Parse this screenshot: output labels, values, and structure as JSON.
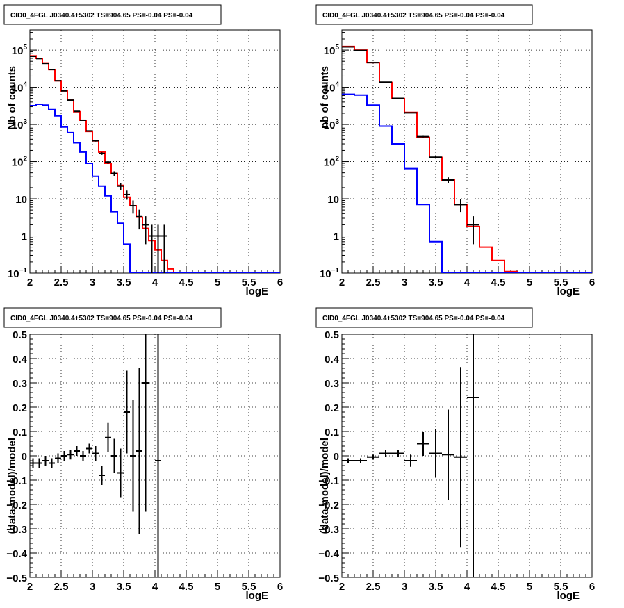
{
  "colors": {
    "data": "#000000",
    "model_total": "#ff0000",
    "model_source": "#0000ff",
    "grid": "#000000",
    "background": "#ffffff"
  },
  "chart_data": [
    {
      "type": "histogram",
      "title": "CID0_4FGL J0340.4+5302 TS=904.65 PS=-0.04 PS=-0.04",
      "xlabel": "logE",
      "ylabel": "Nb of counts",
      "yscale": "log",
      "xlim": [
        2,
        6
      ],
      "ylim": [
        0.1,
        350000
      ],
      "grid": true,
      "xticklabels": [
        "2",
        "2.5",
        "3",
        "3.5",
        "4",
        "4.5",
        "5",
        "5.5",
        "6"
      ],
      "yticks": [
        {
          "value": 0.1,
          "label": "10",
          "sup": "−1"
        },
        {
          "value": 1,
          "label": "1",
          "sup": ""
        },
        {
          "value": 10,
          "label": "10",
          "sup": ""
        },
        {
          "value": 100,
          "label": "10",
          "sup": "2"
        },
        {
          "value": 1000,
          "label": "10",
          "sup": "3"
        },
        {
          "value": 10000,
          "label": "10",
          "sup": "4"
        },
        {
          "value": 100000,
          "label": "10",
          "sup": "5"
        }
      ],
      "bin_edges": [
        2,
        2.1,
        2.2,
        2.3,
        2.4,
        2.5,
        2.6,
        2.7,
        2.8,
        2.9,
        3.0,
        3.1,
        3.2,
        3.3,
        3.4,
        3.5,
        3.6,
        3.7,
        3.8,
        3.9,
        4.0,
        4.1,
        4.2,
        4.3,
        4.4,
        4.5,
        4.6,
        4.7,
        4.8,
        4.9,
        5.0,
        5.1,
        5.2,
        5.3,
        5.4,
        5.5,
        5.6,
        5.7,
        5.8,
        5.9,
        6.0
      ],
      "series": [
        {
          "name": "model_total",
          "color": "#ff0000",
          "values": [
            70000,
            60000,
            45000,
            30000,
            15000,
            8000,
            4500,
            2200,
            1300,
            650,
            360,
            180,
            90,
            48,
            23,
            11,
            6.5,
            3.2,
            1.6,
            0.75,
            0.42,
            0.22,
            0.13,
            0.1,
            0.1,
            0.1,
            0.1,
            0.1,
            0.1,
            0.1,
            0.1,
            0.1,
            0.1,
            0.1,
            0.1,
            0.1,
            0.1,
            0.1,
            0.1,
            0.1
          ]
        },
        {
          "name": "model_source",
          "color": "#0000ff",
          "values": [
            3200,
            3500,
            3300,
            2500,
            1700,
            850,
            600,
            320,
            180,
            90,
            40,
            22,
            12,
            4.5,
            2.2,
            0.6,
            0.1,
            0.1,
            0.1,
            0.1,
            0.1,
            0.1,
            0.1,
            0.1,
            0.1,
            0.1,
            0.1,
            0.1,
            0.1,
            0.1,
            0.1,
            0.1,
            0.1,
            0.1,
            0.1,
            0.1,
            0.1,
            0.1,
            0.1,
            0.1
          ]
        }
      ],
      "points": [
        {
          "x": 2.05,
          "y": 68000,
          "yerr": 260
        },
        {
          "x": 2.15,
          "y": 59000,
          "yerr": 240
        },
        {
          "x": 2.25,
          "y": 44000,
          "yerr": 210
        },
        {
          "x": 2.35,
          "y": 30000,
          "yerr": 170
        },
        {
          "x": 2.45,
          "y": 15000,
          "yerr": 120
        },
        {
          "x": 2.55,
          "y": 8000,
          "yerr": 90
        },
        {
          "x": 2.65,
          "y": 4500,
          "yerr": 67
        },
        {
          "x": 2.75,
          "y": 2250,
          "yerr": 47
        },
        {
          "x": 2.85,
          "y": 1300,
          "yerr": 36
        },
        {
          "x": 2.95,
          "y": 670,
          "yerr": 26
        },
        {
          "x": 3.05,
          "y": 365,
          "yerr": 19
        },
        {
          "x": 3.15,
          "y": 165,
          "yerr": 13
        },
        {
          "x": 3.25,
          "y": 97,
          "yerr": 10
        },
        {
          "x": 3.35,
          "y": 48,
          "yerr": 7
        },
        {
          "x": 3.45,
          "y": 22,
          "yerr": 4.7
        },
        {
          "x": 3.55,
          "y": 13,
          "yerr": 3.6
        },
        {
          "x": 3.65,
          "y": 6.5,
          "yerr": 2.5
        },
        {
          "x": 3.75,
          "y": 3.3,
          "yerr": 1.8
        },
        {
          "x": 3.85,
          "y": 2,
          "yerr": 1.4
        },
        {
          "x": 3.95,
          "y": 1,
          "yerr": 1
        },
        {
          "x": 4.05,
          "y": 1,
          "yerr": 1
        },
        {
          "x": 4.15,
          "y": 1,
          "yerr": 1
        }
      ]
    },
    {
      "type": "histogram",
      "title": "CID0_4FGL J0340.4+5302 TS=904.65 PS=-0.04 PS=-0.04",
      "xlabel": "logE",
      "ylabel": "nb of counts",
      "yscale": "log",
      "xlim": [
        2,
        6
      ],
      "ylim": [
        0.1,
        350000
      ],
      "grid": true,
      "xticklabels": [
        "2",
        "2.5",
        "3",
        "3.5",
        "4",
        "4.5",
        "5",
        "5.5",
        "6"
      ],
      "yticks": [
        {
          "value": 0.1,
          "label": "10",
          "sup": "−1"
        },
        {
          "value": 1,
          "label": "1",
          "sup": ""
        },
        {
          "value": 10,
          "label": "10",
          "sup": ""
        },
        {
          "value": 100,
          "label": "10",
          "sup": "2"
        },
        {
          "value": 1000,
          "label": "10",
          "sup": "3"
        },
        {
          "value": 10000,
          "label": "10",
          "sup": "4"
        },
        {
          "value": 100000,
          "label": "10",
          "sup": "5"
        }
      ],
      "bin_edges": [
        2,
        2.2,
        2.4,
        2.6,
        2.8,
        3.0,
        3.2,
        3.4,
        3.6,
        3.8,
        4.0,
        4.2,
        4.4,
        4.6,
        4.8,
        5.0,
        5.2,
        5.4,
        5.6,
        5.8,
        6.0
      ],
      "series": [
        {
          "name": "model_total",
          "color": "#ff0000",
          "values": [
            125000,
            100000,
            46000,
            13500,
            5000,
            2100,
            450,
            130,
            32,
            7,
            1.8,
            0.5,
            0.22,
            0.11,
            0.1,
            0.1,
            0.1,
            0.1,
            0.1,
            0.1
          ]
        },
        {
          "name": "model_source",
          "color": "#0000ff",
          "values": [
            6500,
            6200,
            3300,
            900,
            300,
            65,
            7,
            0.7,
            0.1,
            0.1,
            0.1,
            0.1,
            0.1,
            0.1,
            0.1,
            0.1,
            0.1,
            0.1,
            0.1,
            0.1
          ]
        }
      ],
      "points": [
        {
          "x": 2.1,
          "y": 122000,
          "yerr": 350
        },
        {
          "x": 2.3,
          "y": 98000,
          "yerr": 310
        },
        {
          "x": 2.5,
          "y": 46000,
          "yerr": 215
        },
        {
          "x": 2.7,
          "y": 13700,
          "yerr": 117
        },
        {
          "x": 2.9,
          "y": 5050,
          "yerr": 71
        },
        {
          "x": 3.1,
          "y": 2050,
          "yerr": 45
        },
        {
          "x": 3.3,
          "y": 470,
          "yerr": 22
        },
        {
          "x": 3.5,
          "y": 131,
          "yerr": 11
        },
        {
          "x": 3.7,
          "y": 32,
          "yerr": 5.7
        },
        {
          "x": 3.9,
          "y": 7,
          "yerr": 2.6
        },
        {
          "x": 4.1,
          "y": 2,
          "yerr": 1.4
        }
      ]
    },
    {
      "type": "scatter",
      "title": "CID0_4FGL J0340.4+5302 TS=904.65 PS=-0.04 PS=-0.04",
      "xlabel": "logE",
      "ylabel": "(data-model)/model",
      "xlim": [
        2,
        6
      ],
      "ylim": [
        -0.5,
        0.5
      ],
      "grid": true,
      "xticklabels": [
        "2",
        "2.5",
        "3",
        "3.5",
        "4",
        "4.5",
        "5",
        "5.5",
        "6"
      ],
      "yticklabels": [
        "−0.5",
        "−0.4",
        "−0.3",
        "−0.2",
        "−0.1",
        "0",
        "0.1",
        "0.2",
        "0.3",
        "0.4",
        "0.5"
      ],
      "points": [
        {
          "x": 2.05,
          "y": -0.03,
          "yerr": 0.02
        },
        {
          "x": 2.15,
          "y": -0.03,
          "yerr": 0.02
        },
        {
          "x": 2.25,
          "y": -0.02,
          "yerr": 0.02
        },
        {
          "x": 2.35,
          "y": -0.03,
          "yerr": 0.02
        },
        {
          "x": 2.45,
          "y": -0.01,
          "yerr": 0.02
        },
        {
          "x": 2.55,
          "y": 0.0,
          "yerr": 0.02
        },
        {
          "x": 2.65,
          "y": 0.005,
          "yerr": 0.02
        },
        {
          "x": 2.75,
          "y": 0.02,
          "yerr": 0.02
        },
        {
          "x": 2.85,
          "y": 0.0,
          "yerr": 0.02
        },
        {
          "x": 2.95,
          "y": 0.03,
          "yerr": 0.02
        },
        {
          "x": 3.05,
          "y": 0.01,
          "yerr": 0.03
        },
        {
          "x": 3.15,
          "y": -0.08,
          "yerr": 0.04
        },
        {
          "x": 3.25,
          "y": 0.075,
          "yerr": 0.06
        },
        {
          "x": 3.35,
          "y": 0.0,
          "yerr": 0.07
        },
        {
          "x": 3.45,
          "y": -0.07,
          "yerr": 0.1
        },
        {
          "x": 3.55,
          "y": 0.18,
          "yerr": 0.17
        },
        {
          "x": 3.65,
          "y": 0.0,
          "yerr": 0.23
        },
        {
          "x": 3.75,
          "y": 0.02,
          "yerr": 0.34
        },
        {
          "x": 3.85,
          "y": 0.3,
          "yerr": 0.53
        },
        {
          "x": 4.05,
          "y": -0.02,
          "yerr": 1.0
        }
      ]
    },
    {
      "type": "scatter",
      "title": "CID0_4FGL J0340.4+5302 TS=904.65 PS=-0.04 PS=-0.04",
      "xlabel": "logE",
      "ylabel": "(data-model)/model",
      "xlim": [
        2,
        6
      ],
      "ylim": [
        -0.5,
        0.5
      ],
      "grid": true,
      "xticklabels": [
        "2",
        "2.5",
        "3",
        "3.5",
        "4",
        "4.5",
        "5",
        "5.5",
        "6"
      ],
      "yticklabels": [
        "−0.5",
        "−0.4",
        "−0.3",
        "−0.2",
        "−0.1",
        "0",
        "0.1",
        "0.2",
        "0.3",
        "0.4",
        "0.5"
      ],
      "points": [
        {
          "x": 2.1,
          "y": -0.02,
          "yerr": 0.01
        },
        {
          "x": 2.3,
          "y": -0.02,
          "yerr": 0.01
        },
        {
          "x": 2.5,
          "y": -0.005,
          "yerr": 0.01
        },
        {
          "x": 2.7,
          "y": 0.01,
          "yerr": 0.015
        },
        {
          "x": 2.9,
          "y": 0.01,
          "yerr": 0.015
        },
        {
          "x": 3.1,
          "y": -0.02,
          "yerr": 0.025
        },
        {
          "x": 3.3,
          "y": 0.05,
          "yerr": 0.05
        },
        {
          "x": 3.5,
          "y": 0.01,
          "yerr": 0.1
        },
        {
          "x": 3.7,
          "y": 0.005,
          "yerr": 0.185
        },
        {
          "x": 3.9,
          "y": -0.005,
          "yerr": 0.37
        },
        {
          "x": 4.1,
          "y": 0.24,
          "yerr": 1.0
        }
      ]
    }
  ]
}
